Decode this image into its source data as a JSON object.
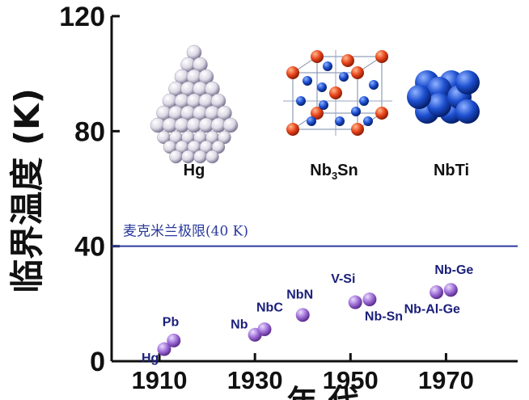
{
  "chart_data": {
    "type": "scatter",
    "title": "",
    "xlabel": "年 代",
    "ylabel": "临界温度 (K)",
    "xlim": [
      1900,
      1985
    ],
    "ylim": [
      0,
      120
    ],
    "x_ticks": [
      1910,
      1930,
      1950,
      1970
    ],
    "y_ticks": [
      0,
      40,
      80,
      120
    ],
    "x_tick_labels": [
      "1910",
      "1930",
      "1950",
      "1970"
    ],
    "y_tick_labels": [
      "0",
      "40",
      "80",
      "120"
    ],
    "grid": false,
    "points": [
      {
        "label": "Hg",
        "x": 1911,
        "y": 4.2
      },
      {
        "label": "Pb",
        "x": 1913,
        "y": 7.2
      },
      {
        "label": "Nb",
        "x": 1930,
        "y": 9.2
      },
      {
        "label": "NbC",
        "x": 1932,
        "y": 11.1
      },
      {
        "label": "NbN",
        "x": 1940,
        "y": 16.1
      },
      {
        "label": "V-Si",
        "x": 1951,
        "y": 20.5
      },
      {
        "label": "Nb-Sn",
        "x": 1954,
        "y": 21.5
      },
      {
        "label": "Nb-Al-Ge",
        "x": 1968,
        "y": 24.0
      },
      {
        "label": "Nb-Ge",
        "x": 1971,
        "y": 24.8
      }
    ],
    "reference_line": {
      "label": "麦克米兰极限(40 K)",
      "y": 40,
      "color": "#2b3a9e"
    },
    "point_color": "#a070d8",
    "structures": [
      {
        "name": "Hg",
        "base": "Hg",
        "sub": ""
      },
      {
        "name": "Nb3Sn",
        "base": "Nb",
        "sub": "3",
        "tail": "Sn"
      },
      {
        "name": "NbTi",
        "base": "NbTi",
        "sub": ""
      }
    ],
    "colors": {
      "sphere_white": "#f0eef4",
      "sphere_red": "#e8461c",
      "sphere_blue": "#1d4fd0",
      "axis": "#111111",
      "text_label": "#1a1f7a"
    }
  }
}
